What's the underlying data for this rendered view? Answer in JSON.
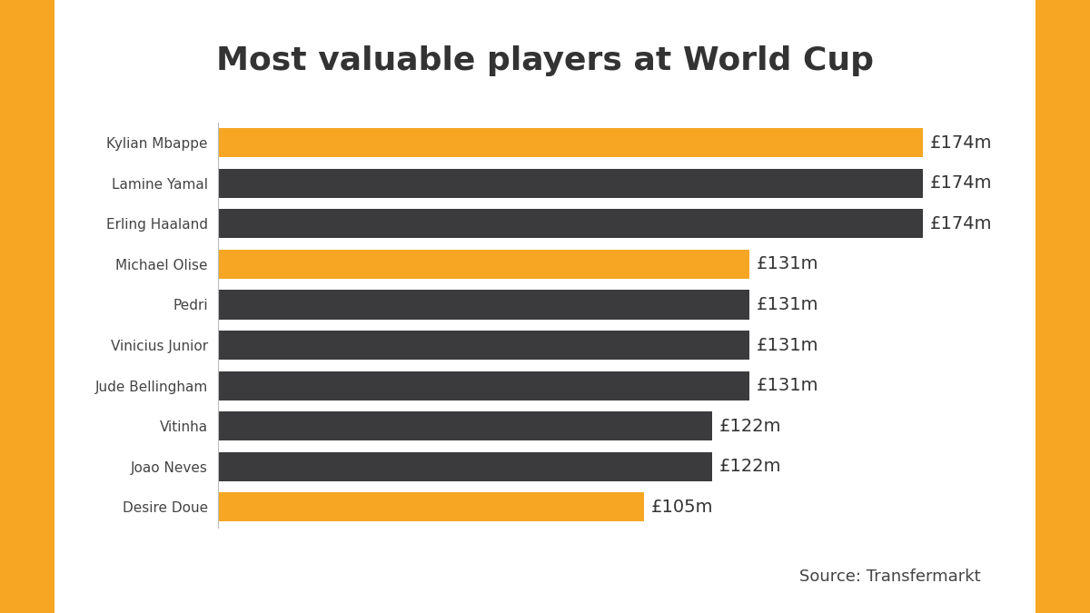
{
  "chart_data": {
    "type": "bar",
    "orientation": "horizontal",
    "title": "Most valuable players at World Cup",
    "annotations": [
      "Source: Transfermarkt"
    ],
    "categories": [
      "Kylian Mbappe",
      "Lamine Yamal",
      "Erling Haaland",
      "Michael Olise",
      "Pedri",
      "Vinicius Junior",
      "Jude Bellingham",
      "Vitinha",
      "Joao Neves",
      "Desire Doue"
    ],
    "values": [
      174,
      174,
      174,
      131,
      131,
      131,
      131,
      122,
      122,
      105
    ],
    "value_labels": [
      "£174m",
      "£174m",
      "£174m",
      "£131m",
      "£131m",
      "£131m",
      "£131m",
      "£122m",
      "£122m",
      "£105m"
    ],
    "colors": [
      "#f6a623",
      "#3b3b3d",
      "#3b3b3d",
      "#f6a623",
      "#3b3b3d",
      "#3b3b3d",
      "#3b3b3d",
      "#3b3b3d",
      "#3b3b3d",
      "#f6a623"
    ],
    "data_labels": true,
    "tick_labels": "y"
  }
}
